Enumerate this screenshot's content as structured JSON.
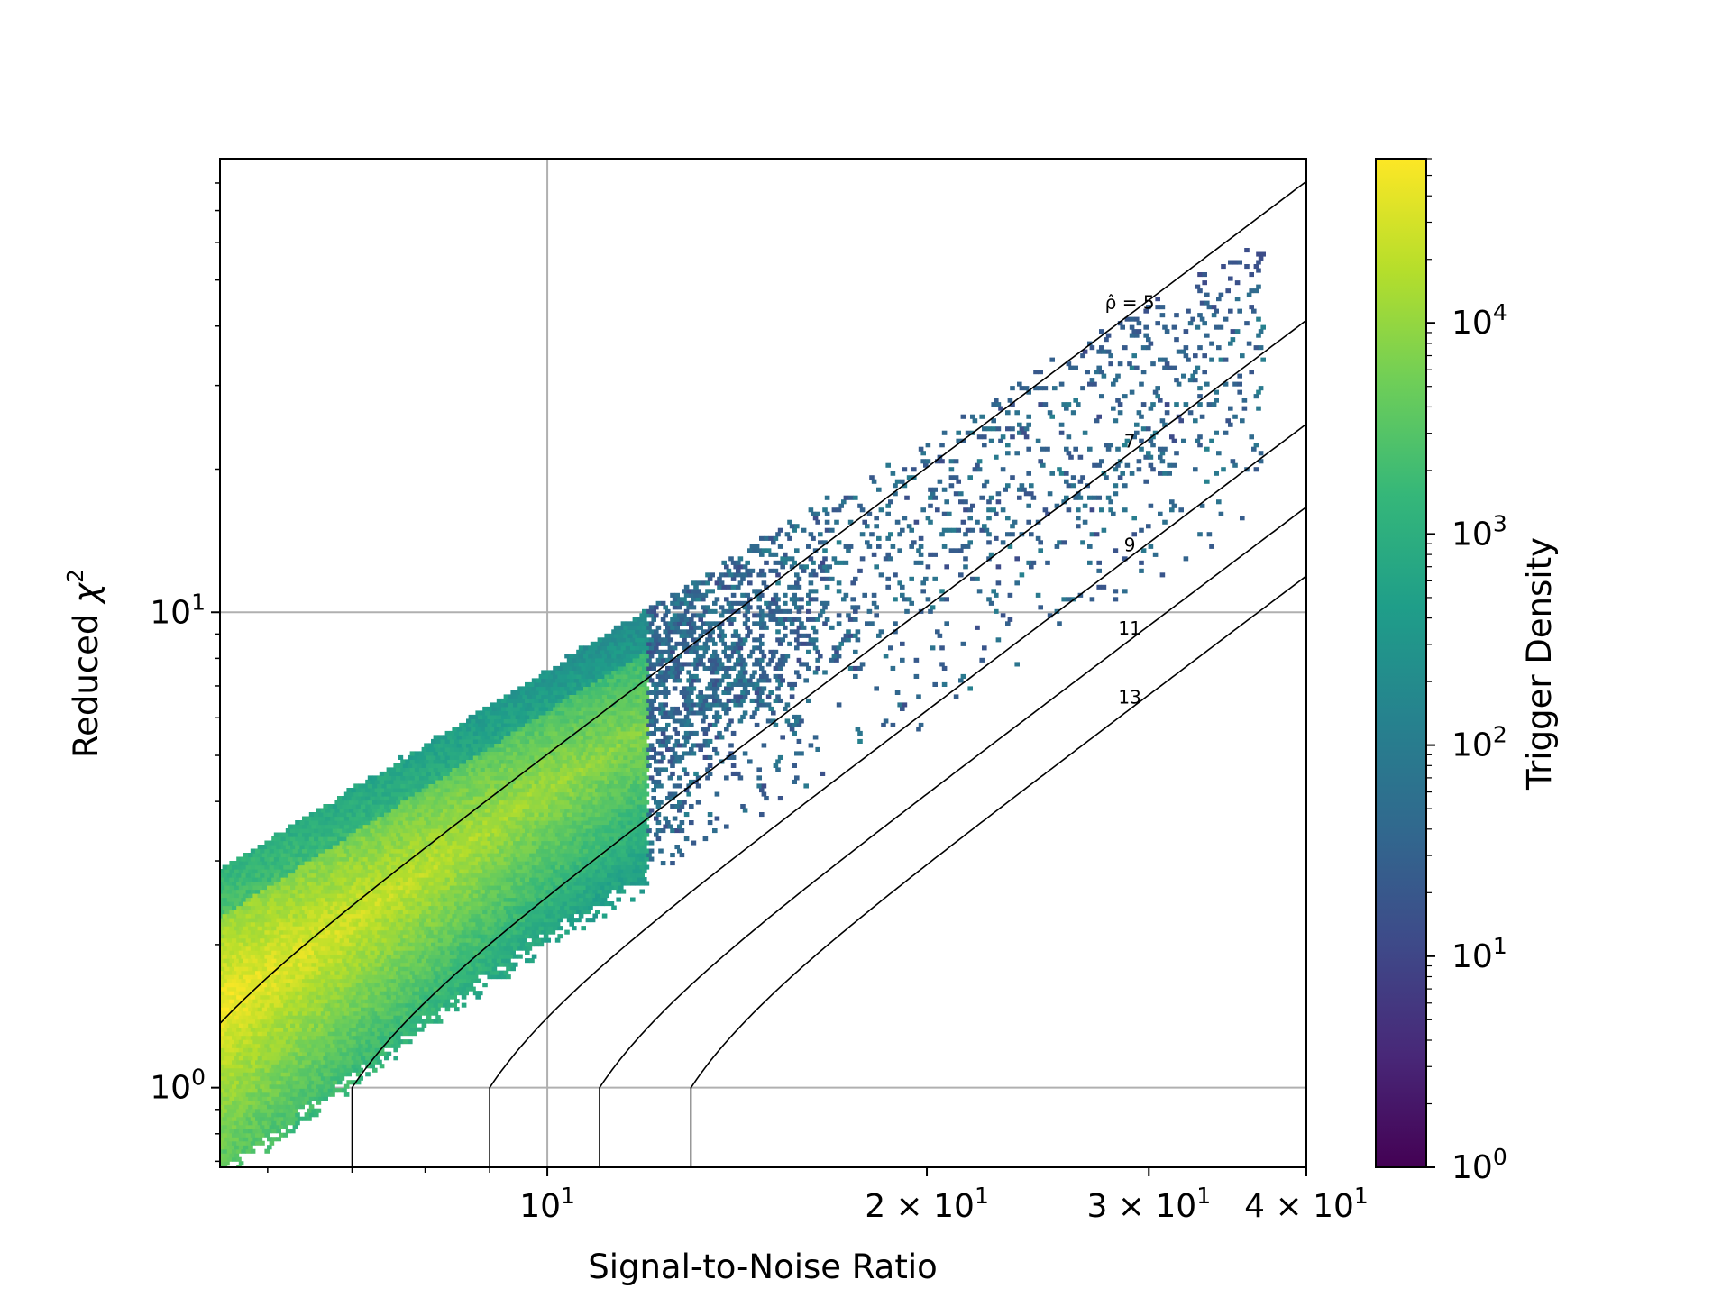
{
  "chart_data": {
    "type": "heatmap",
    "subtype": "hexbin",
    "xlabel": "Signal-to-Noise Ratio",
    "ylabel_text": "Reduced ",
    "ylabel_symbol": "χ",
    "ylabel_sup": "2",
    "x_scale": "log",
    "y_scale": "log",
    "xlim": [
      5.5,
      40
    ],
    "ylim": [
      0.68,
      90
    ],
    "x_ticks": [
      {
        "value": 10,
        "base": "10",
        "exp": "1",
        "mult": ""
      },
      {
        "value": 20,
        "base": "10",
        "exp": "1",
        "mult": "2 × "
      },
      {
        "value": 30,
        "base": "10",
        "exp": "1",
        "mult": "3 × "
      },
      {
        "value": 40,
        "base": "10",
        "exp": "1",
        "mult": "4 × "
      }
    ],
    "y_ticks": [
      {
        "value": 1,
        "base": "10",
        "exp": "0"
      },
      {
        "value": 10,
        "base": "10",
        "exp": "1"
      }
    ],
    "grid": true,
    "colorbar": {
      "label": "Trigger Density",
      "scale": "log",
      "range": [
        1,
        60000
      ],
      "colormap": "viridis",
      "ticks": [
        {
          "value": 1,
          "base": "10",
          "exp": "0"
        },
        {
          "value": 10,
          "base": "10",
          "exp": "1"
        },
        {
          "value": 100,
          "base": "10",
          "exp": "2"
        },
        {
          "value": 1000,
          "base": "10",
          "exp": "3"
        },
        {
          "value": 10000,
          "base": "10",
          "exp": "4"
        }
      ],
      "colors": [
        "#440154",
        "#482878",
        "#3e4a89",
        "#31688e",
        "#26828e",
        "#1f9e89",
        "#35b779",
        "#6ece58",
        "#b5de2b",
        "#fde725"
      ]
    },
    "contours": [
      {
        "rho": 5,
        "label": "ρ̂ = 5"
      },
      {
        "rho": 7,
        "label": "7"
      },
      {
        "rho": 9,
        "label": "9"
      },
      {
        "rho": 11,
        "label": "11"
      },
      {
        "rho": 13,
        "label": "13"
      }
    ],
    "density_regions": [
      {
        "desc": "main band",
        "snr_min": 5.5,
        "snr_max": 12.5
      },
      {
        "desc": "sparse upper tail",
        "snr_min": 12.5,
        "snr_max": 36
      }
    ]
  }
}
